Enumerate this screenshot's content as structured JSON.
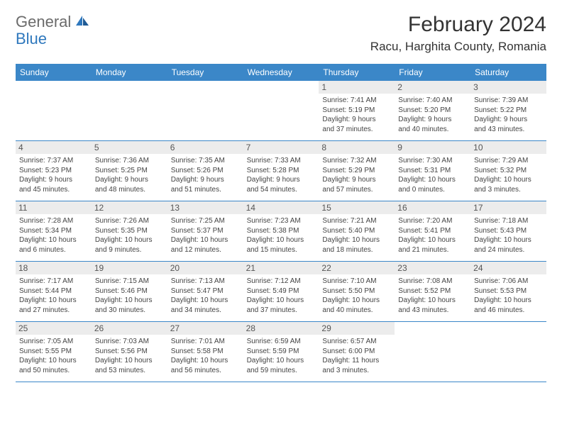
{
  "logo": {
    "part1": "General",
    "part2": "Blue"
  },
  "title": "February 2024",
  "location": "Racu, Harghita County, Romania",
  "colors": {
    "header_bg": "#3b87c8",
    "header_text": "#ffffff",
    "daynum_bg": "#ececec",
    "border": "#3b87c8",
    "logo_gray": "#6b6b6b",
    "logo_blue": "#2f78bd"
  },
  "day_headers": [
    "Sunday",
    "Monday",
    "Tuesday",
    "Wednesday",
    "Thursday",
    "Friday",
    "Saturday"
  ],
  "weeks": [
    [
      {
        "n": "",
        "sr": "",
        "ss": "",
        "d1": "",
        "d2": ""
      },
      {
        "n": "",
        "sr": "",
        "ss": "",
        "d1": "",
        "d2": ""
      },
      {
        "n": "",
        "sr": "",
        "ss": "",
        "d1": "",
        "d2": ""
      },
      {
        "n": "",
        "sr": "",
        "ss": "",
        "d1": "",
        "d2": ""
      },
      {
        "n": "1",
        "sr": "Sunrise: 7:41 AM",
        "ss": "Sunset: 5:19 PM",
        "d1": "Daylight: 9 hours",
        "d2": "and 37 minutes."
      },
      {
        "n": "2",
        "sr": "Sunrise: 7:40 AM",
        "ss": "Sunset: 5:20 PM",
        "d1": "Daylight: 9 hours",
        "d2": "and 40 minutes."
      },
      {
        "n": "3",
        "sr": "Sunrise: 7:39 AM",
        "ss": "Sunset: 5:22 PM",
        "d1": "Daylight: 9 hours",
        "d2": "and 43 minutes."
      }
    ],
    [
      {
        "n": "4",
        "sr": "Sunrise: 7:37 AM",
        "ss": "Sunset: 5:23 PM",
        "d1": "Daylight: 9 hours",
        "d2": "and 45 minutes."
      },
      {
        "n": "5",
        "sr": "Sunrise: 7:36 AM",
        "ss": "Sunset: 5:25 PM",
        "d1": "Daylight: 9 hours",
        "d2": "and 48 minutes."
      },
      {
        "n": "6",
        "sr": "Sunrise: 7:35 AM",
        "ss": "Sunset: 5:26 PM",
        "d1": "Daylight: 9 hours",
        "d2": "and 51 minutes."
      },
      {
        "n": "7",
        "sr": "Sunrise: 7:33 AM",
        "ss": "Sunset: 5:28 PM",
        "d1": "Daylight: 9 hours",
        "d2": "and 54 minutes."
      },
      {
        "n": "8",
        "sr": "Sunrise: 7:32 AM",
        "ss": "Sunset: 5:29 PM",
        "d1": "Daylight: 9 hours",
        "d2": "and 57 minutes."
      },
      {
        "n": "9",
        "sr": "Sunrise: 7:30 AM",
        "ss": "Sunset: 5:31 PM",
        "d1": "Daylight: 10 hours",
        "d2": "and 0 minutes."
      },
      {
        "n": "10",
        "sr": "Sunrise: 7:29 AM",
        "ss": "Sunset: 5:32 PM",
        "d1": "Daylight: 10 hours",
        "d2": "and 3 minutes."
      }
    ],
    [
      {
        "n": "11",
        "sr": "Sunrise: 7:28 AM",
        "ss": "Sunset: 5:34 PM",
        "d1": "Daylight: 10 hours",
        "d2": "and 6 minutes."
      },
      {
        "n": "12",
        "sr": "Sunrise: 7:26 AM",
        "ss": "Sunset: 5:35 PM",
        "d1": "Daylight: 10 hours",
        "d2": "and 9 minutes."
      },
      {
        "n": "13",
        "sr": "Sunrise: 7:25 AM",
        "ss": "Sunset: 5:37 PM",
        "d1": "Daylight: 10 hours",
        "d2": "and 12 minutes."
      },
      {
        "n": "14",
        "sr": "Sunrise: 7:23 AM",
        "ss": "Sunset: 5:38 PM",
        "d1": "Daylight: 10 hours",
        "d2": "and 15 minutes."
      },
      {
        "n": "15",
        "sr": "Sunrise: 7:21 AM",
        "ss": "Sunset: 5:40 PM",
        "d1": "Daylight: 10 hours",
        "d2": "and 18 minutes."
      },
      {
        "n": "16",
        "sr": "Sunrise: 7:20 AM",
        "ss": "Sunset: 5:41 PM",
        "d1": "Daylight: 10 hours",
        "d2": "and 21 minutes."
      },
      {
        "n": "17",
        "sr": "Sunrise: 7:18 AM",
        "ss": "Sunset: 5:43 PM",
        "d1": "Daylight: 10 hours",
        "d2": "and 24 minutes."
      }
    ],
    [
      {
        "n": "18",
        "sr": "Sunrise: 7:17 AM",
        "ss": "Sunset: 5:44 PM",
        "d1": "Daylight: 10 hours",
        "d2": "and 27 minutes."
      },
      {
        "n": "19",
        "sr": "Sunrise: 7:15 AM",
        "ss": "Sunset: 5:46 PM",
        "d1": "Daylight: 10 hours",
        "d2": "and 30 minutes."
      },
      {
        "n": "20",
        "sr": "Sunrise: 7:13 AM",
        "ss": "Sunset: 5:47 PM",
        "d1": "Daylight: 10 hours",
        "d2": "and 34 minutes."
      },
      {
        "n": "21",
        "sr": "Sunrise: 7:12 AM",
        "ss": "Sunset: 5:49 PM",
        "d1": "Daylight: 10 hours",
        "d2": "and 37 minutes."
      },
      {
        "n": "22",
        "sr": "Sunrise: 7:10 AM",
        "ss": "Sunset: 5:50 PM",
        "d1": "Daylight: 10 hours",
        "d2": "and 40 minutes."
      },
      {
        "n": "23",
        "sr": "Sunrise: 7:08 AM",
        "ss": "Sunset: 5:52 PM",
        "d1": "Daylight: 10 hours",
        "d2": "and 43 minutes."
      },
      {
        "n": "24",
        "sr": "Sunrise: 7:06 AM",
        "ss": "Sunset: 5:53 PM",
        "d1": "Daylight: 10 hours",
        "d2": "and 46 minutes."
      }
    ],
    [
      {
        "n": "25",
        "sr": "Sunrise: 7:05 AM",
        "ss": "Sunset: 5:55 PM",
        "d1": "Daylight: 10 hours",
        "d2": "and 50 minutes."
      },
      {
        "n": "26",
        "sr": "Sunrise: 7:03 AM",
        "ss": "Sunset: 5:56 PM",
        "d1": "Daylight: 10 hours",
        "d2": "and 53 minutes."
      },
      {
        "n": "27",
        "sr": "Sunrise: 7:01 AM",
        "ss": "Sunset: 5:58 PM",
        "d1": "Daylight: 10 hours",
        "d2": "and 56 minutes."
      },
      {
        "n": "28",
        "sr": "Sunrise: 6:59 AM",
        "ss": "Sunset: 5:59 PM",
        "d1": "Daylight: 10 hours",
        "d2": "and 59 minutes."
      },
      {
        "n": "29",
        "sr": "Sunrise: 6:57 AM",
        "ss": "Sunset: 6:00 PM",
        "d1": "Daylight: 11 hours",
        "d2": "and 3 minutes."
      },
      {
        "n": "",
        "sr": "",
        "ss": "",
        "d1": "",
        "d2": ""
      },
      {
        "n": "",
        "sr": "",
        "ss": "",
        "d1": "",
        "d2": ""
      }
    ]
  ]
}
